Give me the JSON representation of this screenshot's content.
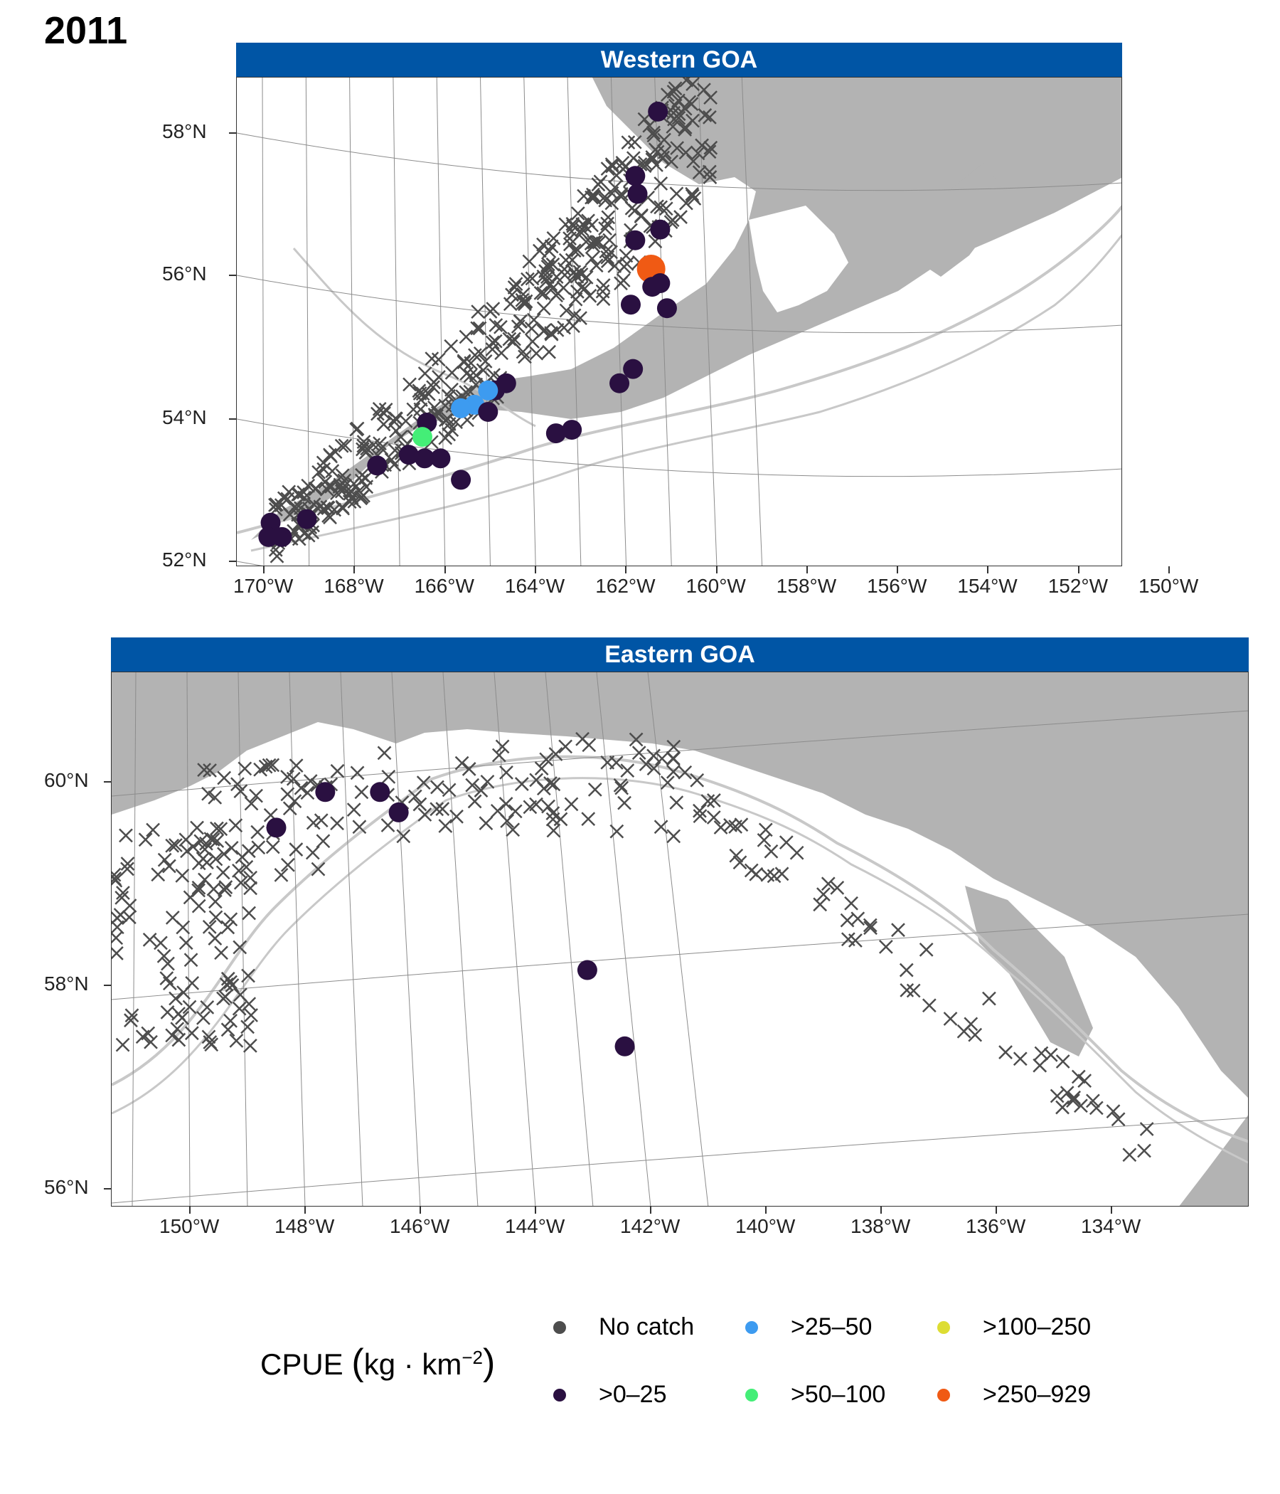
{
  "year": "2011",
  "colors": {
    "land": "#b3b3b3",
    "strip": "#0055a5",
    "grid": "#8c8c8c",
    "contour": "#c8c8c8",
    "cross": "#4d4d4d"
  },
  "panels": [
    {
      "title": "Western GOA",
      "lon_ticks": [
        "170°W",
        "168°W",
        "166°W",
        "164°W",
        "162°W",
        "160°W",
        "158°W",
        "156°W",
        "154°W",
        "152°W",
        "150°W"
      ],
      "lat_ticks": [
        "58°N",
        "56°N",
        "54°N",
        "52°N"
      ],
      "catches": [
        {
          "lon": -152.6,
          "lat": 58.3,
          "cat": ">0–25"
        },
        {
          "lon": -153.6,
          "lat": 57.4,
          "cat": ">0–25"
        },
        {
          "lon": -153.5,
          "lat": 57.15,
          "cat": ">0–25"
        },
        {
          "lon": -153.6,
          "lat": 56.5,
          "cat": ">0–25"
        },
        {
          "lon": -152.5,
          "lat": 56.65,
          "cat": ">0–25"
        },
        {
          "lon": -152.9,
          "lat": 56.1,
          "cat": ">250–929"
        },
        {
          "lon": -152.5,
          "lat": 55.9,
          "cat": ">0–25"
        },
        {
          "lon": -152.85,
          "lat": 55.85,
          "cat": ">0–25"
        },
        {
          "lon": -153.8,
          "lat": 55.6,
          "cat": ">0–25"
        },
        {
          "lon": -152.2,
          "lat": 55.55,
          "cat": ">0–25"
        },
        {
          "lon": -153.7,
          "lat": 54.7,
          "cat": ">0–25"
        },
        {
          "lon": -154.3,
          "lat": 54.5,
          "cat": ">0–25"
        },
        {
          "lon": -157.1,
          "lat": 53.8,
          "cat": ">0–25"
        },
        {
          "lon": -156.4,
          "lat": 53.85,
          "cat": ">0–25"
        },
        {
          "lon": -159.3,
          "lat": 54.5,
          "cat": ">0–25"
        },
        {
          "lon": -159.8,
          "lat": 54.4,
          "cat": ">0–25"
        },
        {
          "lon": -160.1,
          "lat": 54.4,
          "cat": ">25–50"
        },
        {
          "lon": -160.7,
          "lat": 54.2,
          "cat": ">25–50"
        },
        {
          "lon": -161.3,
          "lat": 54.15,
          "cat": ">25–50"
        },
        {
          "lon": -160.1,
          "lat": 54.1,
          "cat": ">0–25"
        },
        {
          "lon": -162.8,
          "lat": 53.95,
          "cat": ">0–25"
        },
        {
          "lon": -163.0,
          "lat": 53.75,
          "cat": ">50–100"
        },
        {
          "lon": -163.6,
          "lat": 53.5,
          "cat": ">0–25"
        },
        {
          "lon": -162.9,
          "lat": 53.45,
          "cat": ">0–25"
        },
        {
          "lon": -162.2,
          "lat": 53.45,
          "cat": ">0–25"
        },
        {
          "lon": -161.3,
          "lat": 53.15,
          "cat": ">0–25"
        },
        {
          "lon": -165.0,
          "lat": 53.35,
          "cat": ">0–25"
        },
        {
          "lon": -168.1,
          "lat": 52.6,
          "cat": ">0–25"
        },
        {
          "lon": -169.7,
          "lat": 52.55,
          "cat": ">0–25"
        },
        {
          "lon": -169.8,
          "lat": 52.35,
          "cat": ">0–25"
        },
        {
          "lon": -169.2,
          "lat": 52.35,
          "cat": ">0–25"
        }
      ]
    },
    {
      "title": "Eastern GOA",
      "lon_ticks": [
        "150°W",
        "148°W",
        "146°W",
        "144°W",
        "142°W",
        "140°W",
        "138°W",
        "136°W",
        "134°W"
      ],
      "lat_ticks": [
        "60°N",
        "58°N",
        "56°N"
      ],
      "catches": [
        {
          "lon": -147.0,
          "lat": 59.55,
          "cat": ">0–25"
        },
        {
          "lon": -145.3,
          "lat": 59.9,
          "cat": ">0–25"
        },
        {
          "lon": -143.4,
          "lat": 59.9,
          "cat": ">0–25"
        },
        {
          "lon": -142.75,
          "lat": 59.7,
          "cat": ">0–25"
        },
        {
          "lon": -136.2,
          "lat": 58.15,
          "cat": ">0–25"
        },
        {
          "lon": -134.9,
          "lat": 57.4,
          "cat": ">0–25"
        }
      ]
    }
  ],
  "legend": {
    "title_main": "CPUE ",
    "title_unit": "kg · km",
    "title_sup": "−2",
    "items": [
      {
        "label": "No catch",
        "color": "#4d4d4d"
      },
      {
        "label": ">0–25",
        "color": "#2a1041"
      },
      {
        "label": ">25–50",
        "color": "#3d9bf0"
      },
      {
        "label": ">50–100",
        "color": "#44ee77"
      },
      {
        "label": ">100–250",
        "color": "#dddd33"
      },
      {
        "label": ">250–929",
        "color": "#f05a14"
      }
    ]
  }
}
